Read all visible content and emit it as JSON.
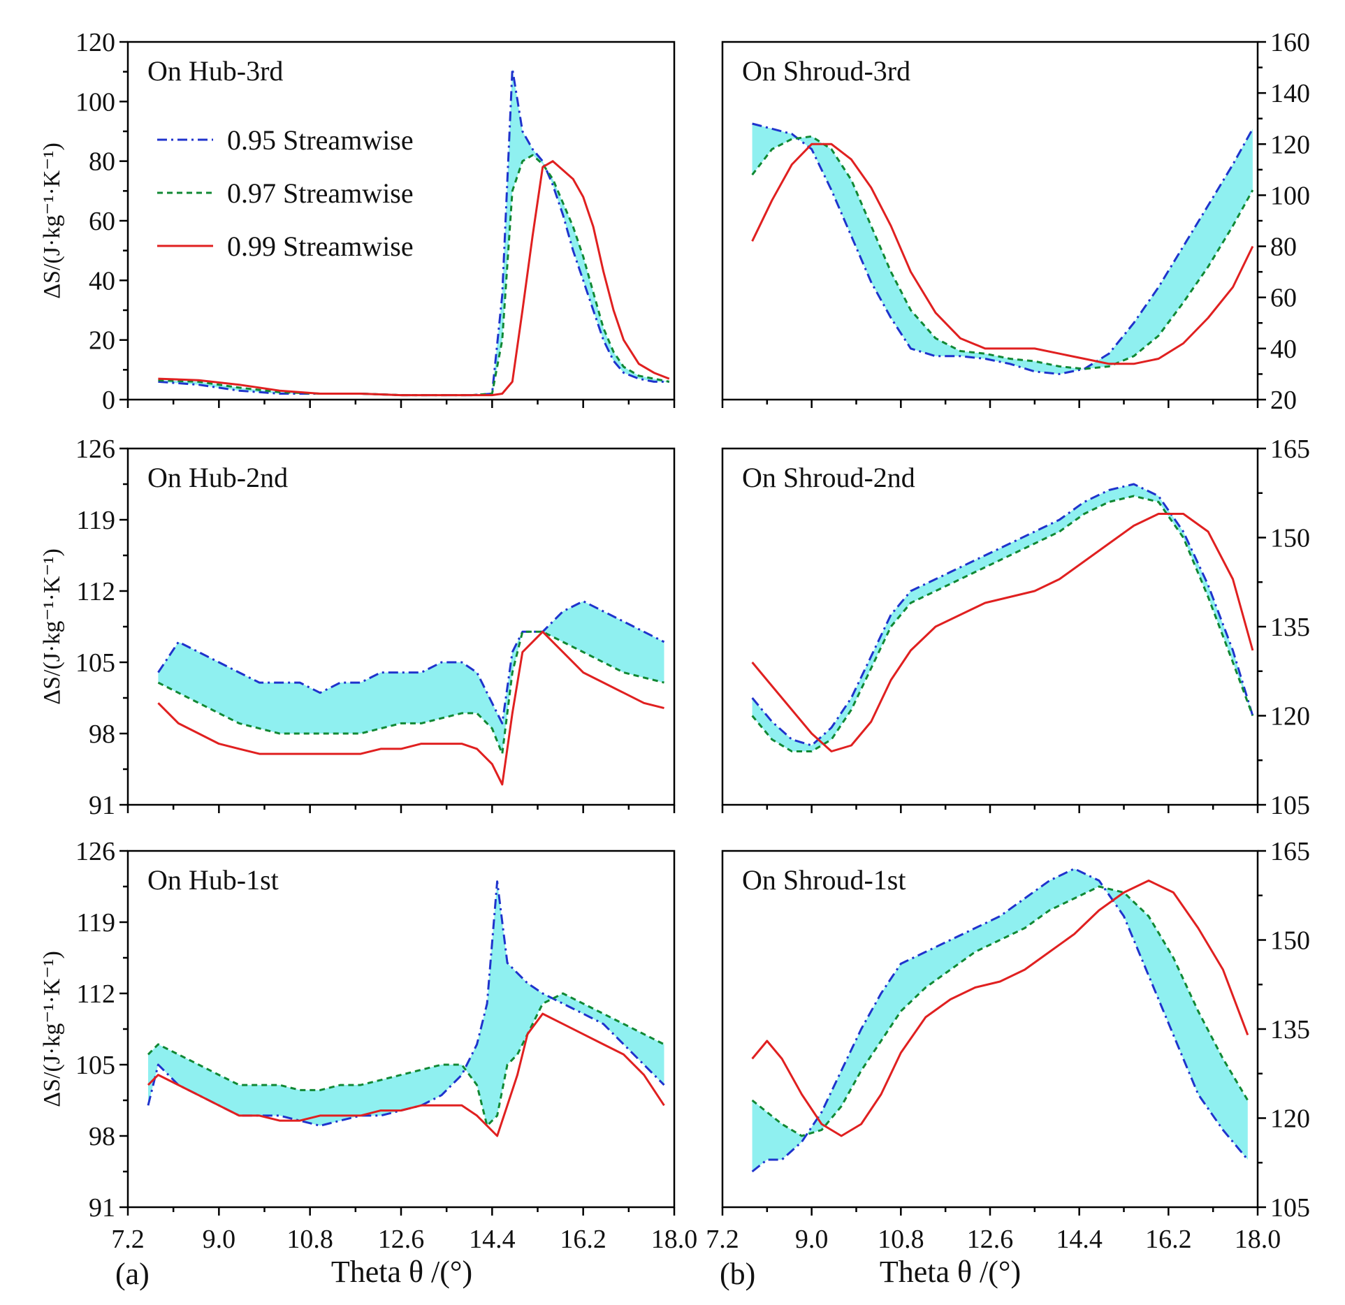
{
  "figure": {
    "x_axis_title": "Theta θ /(°)",
    "panel_a_label": "(a)",
    "panel_b_label": "(b)",
    "y_axis_title_left": "ΔS/(J·kg⁻¹·K⁻¹)"
  },
  "legend": {
    "items": [
      {
        "label": "0.95 Streamwise",
        "color": "#1f33cc",
        "dash": "dashdot"
      },
      {
        "label": "0.97 Streamwise",
        "color": "#118833",
        "dash": "dashed"
      },
      {
        "label": "0.99 Streamwise",
        "color": "#e02020",
        "dash": "solid"
      }
    ]
  },
  "colors": {
    "band": "#8ff0f0",
    "frame": "#000000"
  },
  "chart_data": [
    {
      "type": "line",
      "title": "On Hub-3rd",
      "xlabel": "",
      "ylabel": "ΔS/(J·kg⁻¹·K⁻¹)",
      "y_axis_side": "left",
      "xlim": [
        7.2,
        18.0
      ],
      "ylim": [
        0,
        120
      ],
      "xticks": [
        "7.2",
        "9.0",
        "10.8",
        "12.6",
        "14.4",
        "16.2",
        "18.0"
      ],
      "yticks": [
        "0",
        "20",
        "40",
        "60",
        "80",
        "100",
        "120"
      ],
      "x": [
        7.8,
        8.6,
        9.4,
        10.2,
        11.0,
        11.8,
        12.6,
        13.4,
        14.0,
        14.4,
        14.6,
        14.8,
        15.0,
        15.2,
        15.4,
        15.6,
        15.8,
        16.0,
        16.2,
        16.4,
        16.6,
        16.8,
        17.0,
        17.3,
        17.6,
        17.9
      ],
      "series": [
        {
          "name": "0.95 Streamwise",
          "values": [
            6,
            5,
            3,
            2,
            2,
            2,
            1.5,
            1.5,
            1.5,
            2,
            35,
            111,
            90,
            84,
            80,
            72,
            62,
            50,
            40,
            30,
            20,
            13,
            9,
            7,
            6,
            6
          ]
        },
        {
          "name": "0.97 Streamwise",
          "values": [
            6.5,
            6,
            4,
            2.5,
            2,
            2,
            1.5,
            1.5,
            1.5,
            2,
            20,
            70,
            80,
            82,
            79,
            74,
            66,
            58,
            48,
            36,
            24,
            16,
            11,
            8,
            7,
            6
          ]
        },
        {
          "name": "0.99 Streamwise",
          "values": [
            7,
            6.5,
            5,
            3,
            2,
            2,
            1.5,
            1.5,
            1.5,
            1.5,
            2,
            6,
            30,
            55,
            78,
            80,
            77,
            74,
            68,
            58,
            43,
            30,
            20,
            12,
            9,
            7
          ]
        }
      ]
    },
    {
      "type": "line",
      "title": "On Shroud-3rd",
      "xlabel": "",
      "ylabel": "",
      "y_axis_side": "right",
      "xlim": [
        7.2,
        18.0
      ],
      "ylim": [
        20,
        160
      ],
      "xticks": [
        "7.2",
        "9.0",
        "10.8",
        "12.6",
        "14.4",
        "16.2",
        "18.0"
      ],
      "yticks": [
        "20",
        "40",
        "60",
        "80",
        "100",
        "120",
        "140",
        "160"
      ],
      "x": [
        7.8,
        8.2,
        8.6,
        9.0,
        9.4,
        9.8,
        10.2,
        10.6,
        11.0,
        11.5,
        12.0,
        12.5,
        13.0,
        13.5,
        14.0,
        14.5,
        15.0,
        15.5,
        16.0,
        16.5,
        17.0,
        17.5,
        17.9
      ],
      "series": [
        {
          "name": "0.95 Streamwise",
          "values": [
            128,
            126,
            124,
            118,
            102,
            84,
            66,
            52,
            40,
            37,
            37,
            36,
            34,
            31,
            30,
            32,
            38,
            50,
            64,
            80,
            96,
            112,
            126
          ]
        },
        {
          "name": "0.97 Streamwise",
          "values": [
            108,
            118,
            122,
            123,
            118,
            106,
            88,
            70,
            55,
            44,
            39,
            38,
            36,
            35,
            33,
            32,
            33,
            37,
            45,
            58,
            72,
            88,
            102
          ]
        },
        {
          "name": "0.99 Streamwise",
          "values": [
            82,
            98,
            112,
            120,
            120,
            114,
            103,
            88,
            70,
            54,
            44,
            40,
            40,
            40,
            38,
            36,
            34,
            34,
            36,
            42,
            52,
            64,
            80
          ]
        }
      ]
    },
    {
      "type": "line",
      "title": "On Hub-2nd",
      "xlabel": "",
      "ylabel": "ΔS/(J·kg⁻¹·K⁻¹)",
      "y_axis_side": "left",
      "xlim": [
        7.2,
        18.0
      ],
      "ylim": [
        91,
        126
      ],
      "xticks": [
        "7.2",
        "9.0",
        "10.8",
        "12.6",
        "14.4",
        "16.2",
        "18.0"
      ],
      "yticks": [
        "91",
        "98",
        "105",
        "112",
        "119",
        "126"
      ],
      "x": [
        7.8,
        8.2,
        8.6,
        9.0,
        9.4,
        9.8,
        10.2,
        10.6,
        11.0,
        11.4,
        11.8,
        12.2,
        12.6,
        13.0,
        13.4,
        13.8,
        14.1,
        14.4,
        14.6,
        14.8,
        15.0,
        15.4,
        15.8,
        16.2,
        16.6,
        17.0,
        17.4,
        17.8
      ],
      "series": [
        {
          "name": "0.95 Streamwise",
          "values": [
            104,
            107,
            106,
            105,
            104,
            103,
            103,
            103,
            102,
            103,
            103,
            104,
            104,
            104,
            105,
            105,
            104,
            101,
            99,
            106,
            108,
            108,
            110,
            111,
            110,
            109,
            108,
            107
          ]
        },
        {
          "name": "0.97 Streamwise",
          "values": [
            103,
            102,
            101,
            100,
            99,
            98.5,
            98,
            98,
            98,
            98,
            98,
            98.5,
            99,
            99,
            99.5,
            100,
            100,
            98.5,
            96,
            104,
            108,
            108,
            107,
            106,
            105,
            104,
            103.5,
            103
          ]
        },
        {
          "name": "0.99 Streamwise",
          "values": [
            101,
            99,
            98,
            97,
            96.5,
            96,
            96,
            96,
            96,
            96,
            96,
            96.5,
            96.5,
            97,
            97,
            97,
            96.5,
            95,
            93,
            100,
            106,
            108,
            106,
            104,
            103,
            102,
            101,
            100.5
          ]
        }
      ]
    },
    {
      "type": "line",
      "title": "On Shroud-2nd",
      "xlabel": "",
      "ylabel": "",
      "y_axis_side": "right",
      "xlim": [
        7.2,
        18.0
      ],
      "ylim": [
        105,
        165
      ],
      "xticks": [
        "7.2",
        "9.0",
        "10.8",
        "12.6",
        "14.4",
        "16.2",
        "18.0"
      ],
      "yticks": [
        "105",
        "120",
        "135",
        "150",
        "165"
      ],
      "x": [
        7.8,
        8.2,
        8.6,
        9.0,
        9.4,
        9.8,
        10.2,
        10.6,
        11.0,
        11.5,
        12.0,
        12.5,
        13.0,
        13.5,
        14.0,
        14.5,
        15.0,
        15.5,
        16.0,
        16.5,
        17.0,
        17.5,
        17.9
      ],
      "series": [
        {
          "name": "0.95 Streamwise",
          "values": [
            123,
            119,
            116,
            115,
            118,
            123,
            130,
            137,
            141,
            143,
            145,
            147,
            149,
            151,
            153,
            156,
            158,
            159,
            157,
            151,
            142,
            131,
            120
          ]
        },
        {
          "name": "0.97 Streamwise",
          "values": [
            120,
            116,
            114,
            114,
            116,
            121,
            128,
            135,
            139,
            141,
            143,
            145,
            147,
            149,
            151,
            154,
            156,
            157,
            156,
            150,
            140,
            129,
            120
          ]
        },
        {
          "name": "0.99 Streamwise",
          "values": [
            129,
            125,
            121,
            117,
            114,
            115,
            119,
            126,
            131,
            135,
            137,
            139,
            140,
            141,
            143,
            146,
            149,
            152,
            154,
            154,
            151,
            143,
            131
          ]
        }
      ]
    },
    {
      "type": "line",
      "title": "On Hub-1st",
      "xlabel": "Theta θ /(°)",
      "ylabel": "ΔS/(J·kg⁻¹·K⁻¹)",
      "y_axis_side": "left",
      "xlim": [
        7.2,
        18.0
      ],
      "ylim": [
        91,
        126
      ],
      "xticks": [
        "7.2",
        "9.0",
        "10.8",
        "12.6",
        "14.4",
        "16.2",
        "18.0"
      ],
      "yticks": [
        "91",
        "98",
        "105",
        "112",
        "119",
        "126"
      ],
      "x": [
        7.6,
        7.8,
        8.2,
        8.6,
        9.0,
        9.4,
        9.8,
        10.2,
        10.6,
        11.0,
        11.4,
        11.8,
        12.2,
        12.6,
        13.0,
        13.4,
        13.8,
        14.1,
        14.3,
        14.5,
        14.7,
        14.9,
        15.1,
        15.4,
        15.8,
        16.2,
        16.6,
        17.0,
        17.4,
        17.8
      ],
      "series": [
        {
          "name": "0.95 Streamwise",
          "values": [
            101,
            105,
            103,
            102,
            101,
            100,
            100,
            100,
            99.5,
            99,
            99.5,
            100,
            100,
            100.5,
            101,
            102,
            104,
            107,
            111,
            123,
            115,
            114,
            113,
            112,
            111,
            110,
            109,
            107,
            105,
            103
          ]
        },
        {
          "name": "0.97 Streamwise",
          "values": [
            106,
            107,
            106,
            105,
            104,
            103,
            103,
            103,
            102.5,
            102.5,
            103,
            103,
            103.5,
            104,
            104.5,
            105,
            105,
            103,
            99,
            100,
            105,
            106,
            108,
            111,
            112,
            111,
            110,
            109,
            108,
            107
          ]
        },
        {
          "name": "0.99 Streamwise",
          "values": [
            103,
            104,
            103,
            102,
            101,
            100,
            100,
            99.5,
            99.5,
            100,
            100,
            100,
            100.5,
            100.5,
            101,
            101,
            101,
            100,
            99,
            98,
            101,
            104,
            108,
            110,
            109,
            108,
            107,
            106,
            104,
            101
          ]
        }
      ]
    },
    {
      "type": "line",
      "title": "On Shroud-1st",
      "xlabel": "Theta θ /(°)",
      "ylabel": "",
      "y_axis_side": "right",
      "xlim": [
        7.2,
        18.0
      ],
      "ylim": [
        105,
        165
      ],
      "xticks": [
        "7.2",
        "9.0",
        "10.8",
        "12.6",
        "14.4",
        "16.2",
        "18.0"
      ],
      "yticks": [
        "105",
        "120",
        "135",
        "150",
        "165"
      ],
      "x": [
        7.8,
        8.1,
        8.4,
        8.8,
        9.2,
        9.6,
        10.0,
        10.4,
        10.8,
        11.3,
        11.8,
        12.3,
        12.8,
        13.3,
        13.8,
        14.3,
        14.8,
        15.3,
        15.8,
        16.3,
        16.8,
        17.3,
        17.8
      ],
      "series": [
        {
          "name": "0.95 Streamwise",
          "values": [
            111,
            113,
            113,
            116,
            121,
            128,
            135,
            141,
            146,
            148,
            150,
            152,
            154,
            157,
            160,
            162,
            160,
            154,
            144,
            134,
            124,
            118,
            113
          ]
        },
        {
          "name": "0.97 Streamwise",
          "values": [
            123,
            121,
            119,
            117,
            118,
            122,
            128,
            133,
            138,
            142,
            145,
            148,
            150,
            152,
            155,
            157,
            159,
            158,
            154,
            147,
            138,
            130,
            123
          ]
        },
        {
          "name": "0.99 Streamwise",
          "values": [
            130,
            133,
            130,
            124,
            119,
            117,
            119,
            124,
            131,
            137,
            140,
            142,
            143,
            145,
            148,
            151,
            155,
            158,
            160,
            158,
            152,
            145,
            134
          ]
        }
      ]
    }
  ]
}
